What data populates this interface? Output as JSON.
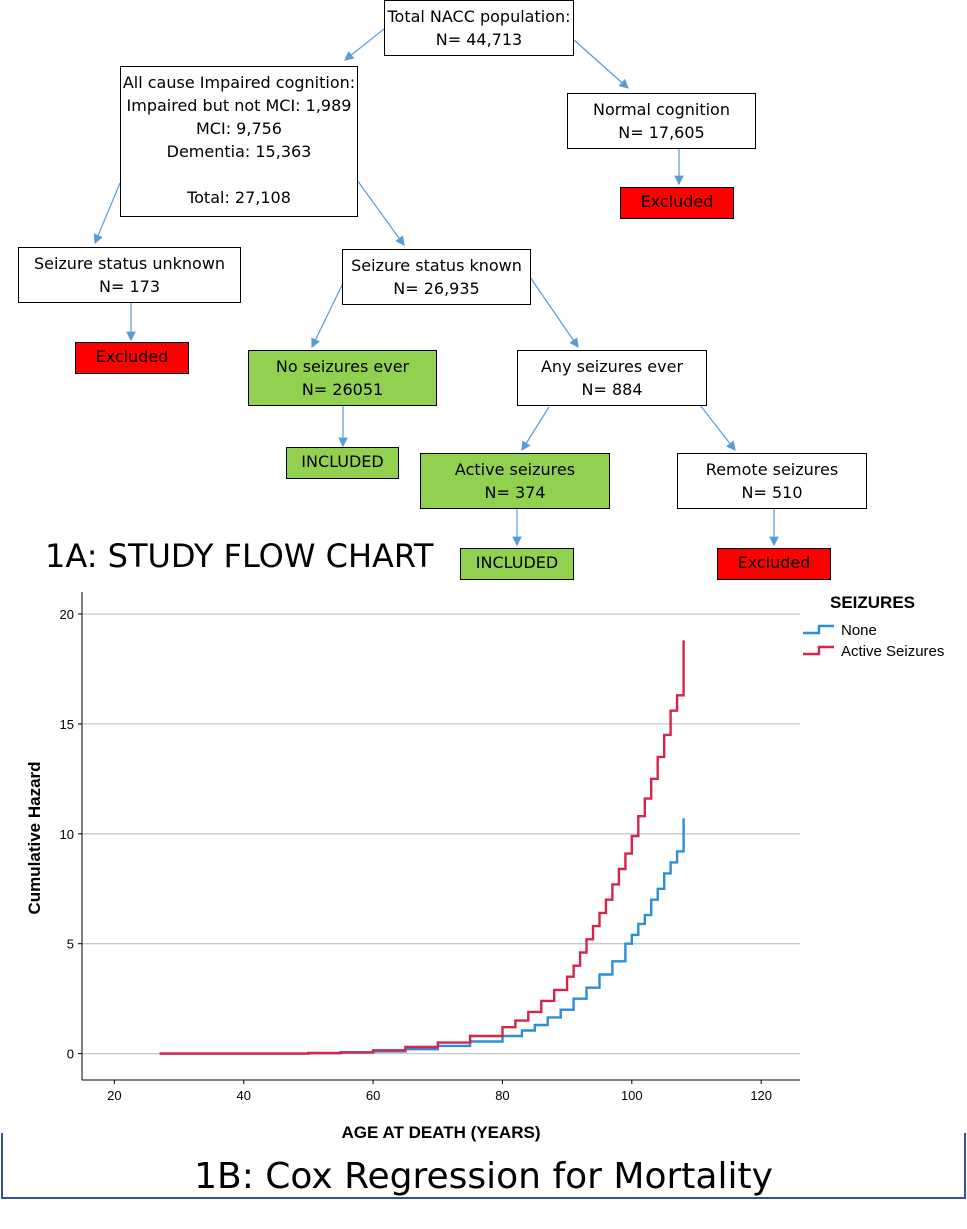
{
  "flowchart": {
    "title": "1A: STUDY FLOW CHART",
    "total": {
      "line1": "Total NACC population:",
      "line2": "N= 44,713"
    },
    "impaired": {
      "line1": "All cause Impaired cognition:",
      "line2": "Impaired but not MCI: 1,989",
      "line3": "MCI: 9,756",
      "line4": "Dementia: 15,363",
      "line5": "Total: 27,108"
    },
    "normal": {
      "line1": "Normal cognition",
      "line2": "N= 17,605"
    },
    "unknown": {
      "line1": "Seizure status unknown",
      "line2": "N= 173"
    },
    "known": {
      "line1": "Seizure status known",
      "line2": "N= 26,935"
    },
    "no_seizures": {
      "line1": "No seizures ever",
      "line2": "N= 26051"
    },
    "any_seizures": {
      "line1": "Any seizures ever",
      "line2": "N= 884"
    },
    "active": {
      "line1": "Active seizures",
      "line2": "N= 374"
    },
    "remote": {
      "line1": "Remote seizures",
      "line2": "N= 510"
    },
    "excluded_label": "Excluded",
    "included_label": "INCLUDED",
    "colors": {
      "excluded": "#ff0000",
      "included": "#92d050",
      "arrow": "#5b9bd5"
    }
  },
  "chart_data": {
    "type": "line",
    "title": "1B: Cox Regression for Mortality",
    "xlabel": "AGE AT DEATH (YEARS)",
    "ylabel": "Cumulative Hazard",
    "xlim": [
      15,
      126
    ],
    "ylim": [
      -1.2,
      21
    ],
    "xticks": [
      20,
      40,
      60,
      80,
      100,
      120
    ],
    "yticks": [
      0,
      5,
      10,
      15,
      20
    ],
    "grid": "horizontal",
    "legend_title": "SEIZURES",
    "legend_position": "top-right",
    "series": [
      {
        "name": "None",
        "color": "#2b8fd8",
        "x": [
          27,
          40,
          50,
          55,
          60,
          65,
          70,
          75,
          80,
          83,
          85,
          87,
          89,
          91,
          93,
          95,
          97,
          99,
          100,
          101,
          102,
          103,
          104,
          105,
          106,
          107,
          108,
          108
        ],
        "y": [
          0,
          0,
          0.02,
          0.05,
          0.1,
          0.2,
          0.35,
          0.55,
          0.8,
          1.05,
          1.3,
          1.65,
          2.0,
          2.5,
          3.0,
          3.6,
          4.2,
          5.0,
          5.4,
          5.9,
          6.3,
          7.0,
          7.5,
          8.2,
          8.7,
          9.2,
          9.3,
          10.7
        ]
      },
      {
        "name": "Active Seizures",
        "color": "#d6254a",
        "x": [
          27,
          40,
          50,
          55,
          60,
          65,
          70,
          75,
          80,
          82,
          84,
          86,
          88,
          90,
          91,
          92,
          93,
          94,
          95,
          96,
          97,
          98,
          99,
          100,
          101,
          102,
          103,
          104,
          105,
          106,
          107,
          108,
          108
        ],
        "y": [
          0,
          0,
          0.03,
          0.06,
          0.15,
          0.3,
          0.5,
          0.8,
          1.2,
          1.5,
          1.9,
          2.4,
          2.9,
          3.5,
          4.0,
          4.6,
          5.2,
          5.8,
          6.4,
          7.0,
          7.7,
          8.4,
          9.1,
          9.9,
          10.8,
          11.6,
          12.5,
          13.5,
          14.5,
          15.6,
          16.3,
          16.4,
          18.8
        ]
      }
    ]
  }
}
